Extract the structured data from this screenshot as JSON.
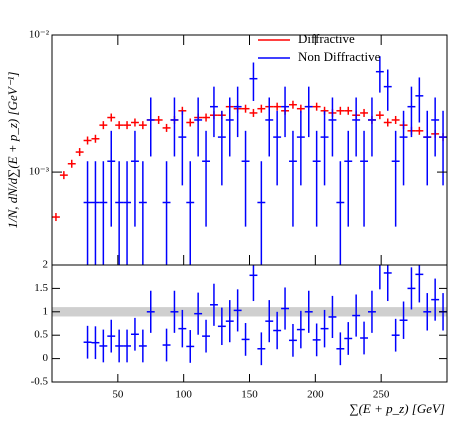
{
  "chart_data": [
    {
      "type": "log-errorbar",
      "ylabel": "1/N, dN/d∑(E + p_z) [GeV⁻¹]",
      "xlim": [
        0,
        300
      ],
      "ylim": [
        0.00021,
        0.01
      ],
      "log_y": true,
      "yticks": [
        {
          "value": 0.01,
          "label": "10⁻²"
        },
        {
          "value": 0.001,
          "label": "10⁻³"
        }
      ],
      "legend": "top-right",
      "series": [
        {
          "name": "Diffractive",
          "color": "#ff0000",
          "bin_width": 6,
          "x": [
            3,
            9,
            15,
            21,
            27,
            33,
            39,
            45,
            51,
            57,
            63,
            69,
            75,
            81,
            87,
            93,
            99,
            105,
            111,
            117,
            123,
            129,
            135,
            141,
            147,
            153,
            159,
            165,
            171,
            177,
            183,
            189,
            195,
            201,
            207,
            213,
            219,
            225,
            231,
            237,
            243,
            249,
            255,
            261,
            267,
            273,
            279,
            285,
            291,
            297
          ],
          "values": [
            0.00047,
            0.00095,
            0.00115,
            0.0014,
            0.0017,
            0.00175,
            0.0022,
            0.0025,
            0.0022,
            0.0022,
            0.0023,
            0.0022,
            0.0024,
            0.0024,
            0.0021,
            0.0024,
            0.0028,
            0.0023,
            0.0025,
            0.0025,
            0.0026,
            0.0026,
            0.003,
            0.0029,
            0.0029,
            0.0027,
            0.0029,
            0.003,
            0.003,
            0.0028,
            0.0031,
            0.0029,
            0.003,
            0.003,
            0.0028,
            0.0027,
            0.0028,
            0.0028,
            0.0026,
            0.0027,
            0.0024,
            0.0026,
            0.0023,
            0.0024,
            0.0022,
            0.002,
            0.002,
            0.0018,
            0.0019,
            0.0018
          ]
        },
        {
          "name": "Non Diffractive",
          "color": "#0000ff",
          "bin_width": 6,
          "x": [
            27,
            33,
            39,
            45,
            51,
            57,
            63,
            69,
            75,
            87,
            93,
            99,
            105,
            111,
            117,
            123,
            129,
            135,
            141,
            147,
            153,
            159,
            165,
            171,
            177,
            183,
            189,
            195,
            201,
            207,
            213,
            219,
            225,
            231,
            237,
            243,
            249,
            255,
            261,
            267,
            273,
            279,
            285,
            291,
            297
          ],
          "values": [
            0.0006,
            0.0006,
            0.0006,
            0.0012,
            0.0006,
            0.0006,
            0.0012,
            0.0006,
            0.0024,
            0.0006,
            0.0024,
            0.0018,
            0.0006,
            0.0024,
            0.0012,
            0.003,
            0.0018,
            0.0024,
            0.003,
            0.0012,
            0.0048,
            0.0006,
            0.0024,
            0.0018,
            0.003,
            0.0012,
            0.0018,
            0.003,
            0.0012,
            0.0018,
            0.0024,
            0.0006,
            0.0012,
            0.0024,
            0.0012,
            0.0024,
            0.0054,
            0.0042,
            0.0012,
            0.0018,
            0.003,
            0.0036,
            0.0018,
            0.0024,
            0.0018
          ],
          "errors": [
            0.0006,
            0.0006,
            0.0006,
            0.0008,
            0.0006,
            0.0006,
            0.0008,
            0.0006,
            0.0011,
            0.0006,
            0.0011,
            0.001,
            0.0006,
            0.0011,
            0.0008,
            0.0012,
            0.001,
            0.0011,
            0.0012,
            0.0008,
            0.0015,
            0.0006,
            0.0011,
            0.001,
            0.0012,
            0.0008,
            0.001,
            0.0012,
            0.0008,
            0.001,
            0.0011,
            0.0006,
            0.0008,
            0.0011,
            0.0008,
            0.0011,
            0.0016,
            0.0014,
            0.0008,
            0.001,
            0.0012,
            0.0013,
            0.001,
            0.0011,
            0.001
          ]
        }
      ]
    },
    {
      "type": "ratio",
      "xlabel": "∑(E + p_z) [GeV]",
      "xlim": [
        0,
        300
      ],
      "xticks": [
        50,
        100,
        150,
        200,
        250
      ],
      "ylim": [
        -0.5,
        2
      ],
      "yticks": [
        -0.5,
        0,
        0.5,
        1,
        1.5,
        2
      ],
      "band": [
        0.9,
        1.1
      ],
      "band_color": "#bbbbbb",
      "series": [
        {
          "color": "#0000ff",
          "bin_width": 6,
          "x": [
            27,
            33,
            39,
            45,
            51,
            57,
            63,
            69,
            75,
            87,
            93,
            99,
            105,
            111,
            117,
            123,
            129,
            135,
            141,
            147,
            153,
            159,
            165,
            171,
            177,
            183,
            189,
            195,
            201,
            207,
            213,
            219,
            225,
            231,
            237,
            243,
            249,
            255,
            261,
            267,
            273,
            279,
            285,
            291,
            297
          ],
          "values": [
            0.35,
            0.34,
            0.27,
            0.48,
            0.27,
            0.27,
            0.52,
            0.27,
            1.0,
            0.29,
            1.0,
            0.64,
            0.26,
            0.96,
            0.48,
            1.15,
            0.69,
            0.8,
            1.03,
            0.41,
            1.78,
            0.21,
            0.8,
            0.6,
            1.07,
            0.39,
            0.62,
            1.0,
            0.4,
            0.64,
            0.89,
            0.21,
            0.43,
            0.92,
            0.44,
            1.0,
            2.08,
            1.83,
            0.5,
            0.82,
            1.5,
            1.8,
            1.0,
            1.26,
            1.0
          ],
          "errors": [
            0.35,
            0.35,
            0.35,
            0.35,
            0.35,
            0.35,
            0.35,
            0.35,
            0.45,
            0.35,
            0.45,
            0.4,
            0.35,
            0.45,
            0.35,
            0.45,
            0.4,
            0.45,
            0.45,
            0.35,
            0.55,
            0.35,
            0.45,
            0.4,
            0.45,
            0.35,
            0.4,
            0.45,
            0.35,
            0.4,
            0.45,
            0.35,
            0.35,
            0.45,
            0.35,
            0.45,
            0.6,
            0.6,
            0.35,
            0.4,
            0.45,
            0.6,
            0.4,
            0.45,
            0.4
          ]
        }
      ]
    }
  ]
}
